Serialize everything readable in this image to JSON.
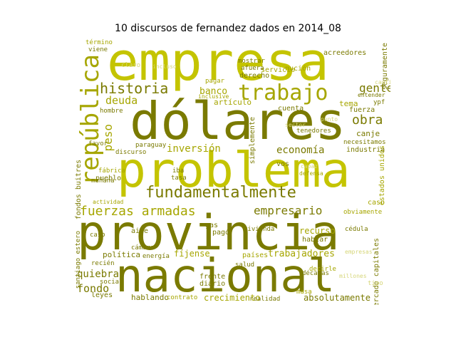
{
  "title": "10 discursos de fernandez dados en 2014_08",
  "palette": {
    "dark": "#7a7a00",
    "mid": "#a6a600",
    "bright": "#c4c400",
    "pale": "#d6d67a"
  },
  "words": [
    "empresa",
    "dólares",
    "problema",
    "provincia",
    "nacional",
    "república",
    "trabajo",
    "historia",
    "fundamentalmente",
    "fuerzas armadas",
    "empresario",
    "economía",
    "gente",
    "banco",
    "deuda",
    "obra",
    "inversión",
    "peso",
    "fondo",
    "quiebra",
    "política",
    "crecimiento",
    "trabajadores",
    "recurso",
    "absolutamente",
    "fondos buitres",
    "mercado capitales",
    "estados unidos",
    "seguramente",
    "acreedores",
    "servicio",
    "derecho",
    "nución",
    "artículo",
    "tema",
    "fuerza",
    "canje",
    "industria",
    "necesitamos",
    "obviamente",
    "frente",
    "diario",
    "hablando",
    "contrato",
    "realidad",
    "leyes",
    "social",
    "pueblo",
    "fábrica",
    "mañana",
    "actividad",
    "favor",
    "hombre",
    "aire",
    "cámara",
    "energía",
    "fíjense",
    "países",
    "hablar",
    "cédula",
    "décadas",
    "vivienda",
    "tasa",
    "iba",
    "paraguay",
    "discurso",
    "tenedores",
    "simplemente",
    "defensa",
    "santiago estero",
    "caso",
    "gas",
    "pagó",
    "salud",
    "masa",
    "término",
    "viene",
    "mostrar",
    "afuera",
    "pagar",
    "inclusive",
    "cuenta",
    "entender",
    "ypf",
    "incluso",
    "decirle",
    "caso",
    "claro",
    "sector",
    "recién",
    "vos",
    "capaz",
    "punto",
    "cantidad",
    "millones",
    "empresas",
    "tipo"
  ]
}
